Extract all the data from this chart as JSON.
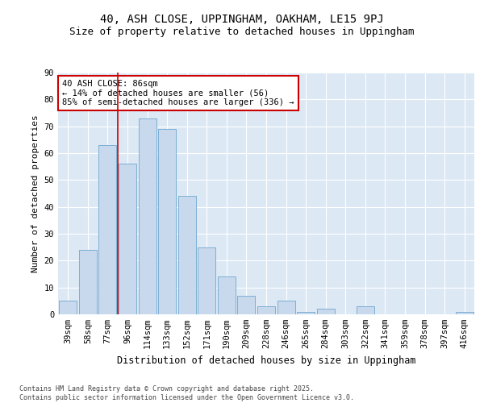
{
  "title1": "40, ASH CLOSE, UPPINGHAM, OAKHAM, LE15 9PJ",
  "title2": "Size of property relative to detached houses in Uppingham",
  "xlabel": "Distribution of detached houses by size in Uppingham",
  "ylabel": "Number of detached properties",
  "categories": [
    "39sqm",
    "58sqm",
    "77sqm",
    "96sqm",
    "114sqm",
    "133sqm",
    "152sqm",
    "171sqm",
    "190sqm",
    "209sqm",
    "228sqm",
    "246sqm",
    "265sqm",
    "284sqm",
    "303sqm",
    "322sqm",
    "341sqm",
    "359sqm",
    "378sqm",
    "397sqm",
    "416sqm"
  ],
  "values": [
    5,
    24,
    63,
    56,
    73,
    69,
    44,
    25,
    14,
    7,
    3,
    5,
    1,
    2,
    0,
    3,
    0,
    0,
    0,
    0,
    1
  ],
  "bar_color": "#c9d9ed",
  "bar_edge_color": "#7bafd4",
  "vline_x_index": 2.5,
  "vline_color": "#cc0000",
  "annotation_text": "40 ASH CLOSE: 86sqm\n← 14% of detached houses are smaller (56)\n85% of semi-detached houses are larger (336) →",
  "annotation_box_facecolor": "#ffffff",
  "annotation_box_edgecolor": "#cc0000",
  "ylim": [
    0,
    90
  ],
  "yticks": [
    0,
    10,
    20,
    30,
    40,
    50,
    60,
    70,
    80,
    90
  ],
  "fig_bg_color": "#ffffff",
  "plot_bg_color": "#dde8f5",
  "grid_color": "#ffffff",
  "footer_text": "Contains HM Land Registry data © Crown copyright and database right 2025.\nContains public sector information licensed under the Open Government Licence v3.0.",
  "title1_fontsize": 10,
  "title2_fontsize": 9,
  "xlabel_fontsize": 8.5,
  "ylabel_fontsize": 8,
  "tick_fontsize": 7.5,
  "annotation_fontsize": 7.5,
  "footer_fontsize": 6
}
